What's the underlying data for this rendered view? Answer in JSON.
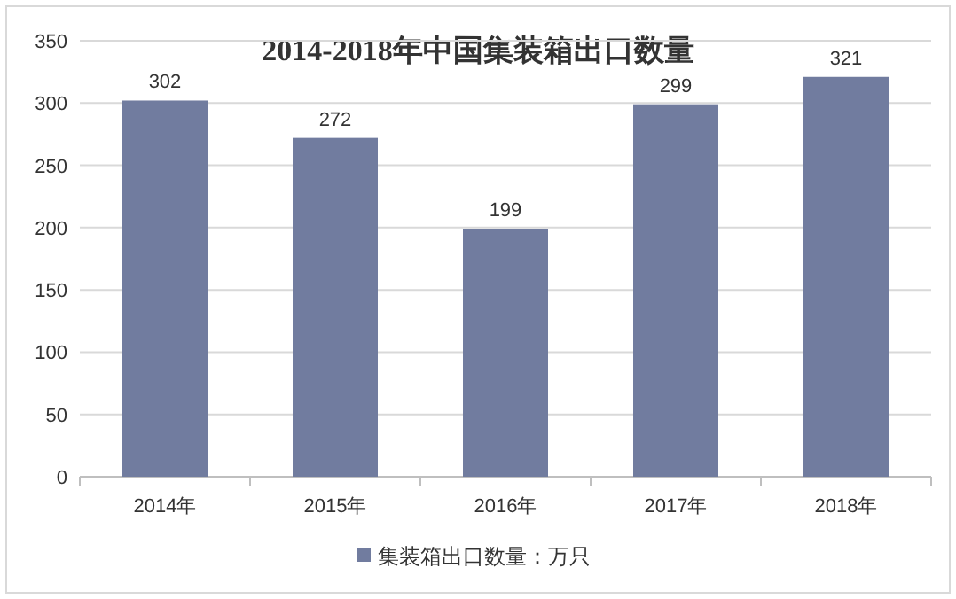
{
  "chart_data": {
    "type": "bar",
    "title": "2014-2018年中国集装箱出口数量",
    "categories": [
      "2014年",
      "2015年",
      "2016年",
      "2017年",
      "2018年"
    ],
    "series": [
      {
        "name": "集装箱出口数量：万只",
        "color": "#717c9f",
        "values": [
          302,
          272,
          199,
          299,
          321
        ]
      }
    ],
    "ylim": [
      0,
      350
    ],
    "yticks": [
      0,
      50,
      100,
      150,
      200,
      250,
      300,
      350
    ],
    "grid": "y",
    "legend": "bottom",
    "data_labels": true
  }
}
